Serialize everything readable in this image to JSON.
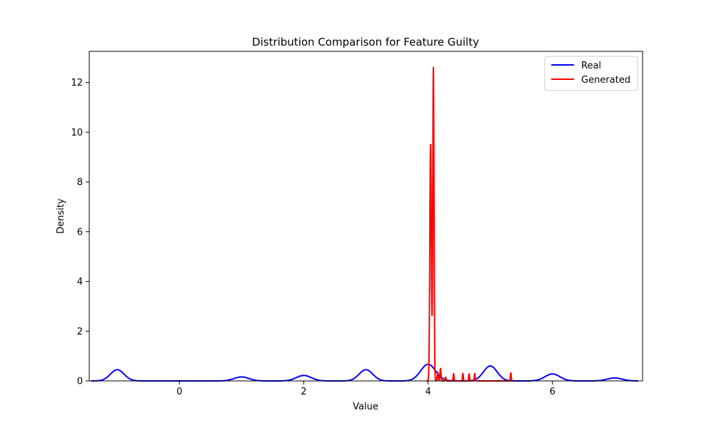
{
  "chart_data": {
    "type": "line",
    "title": "Distribution Comparison for Feature Guilty",
    "xlabel": "Value",
    "ylabel": "Density",
    "xlim": [
      -1.45,
      7.45
    ],
    "ylim": [
      0,
      13.25
    ],
    "xticks": [
      0,
      2,
      4,
      6
    ],
    "yticks": [
      0,
      2,
      4,
      6,
      8,
      10,
      12
    ],
    "grid": false,
    "legend": "top-right",
    "series": [
      {
        "name": "Real",
        "color": "#0000ff",
        "components": [
          {
            "center": -1.0,
            "height": 0.45,
            "width": 0.11
          },
          {
            "center": 1.0,
            "height": 0.16,
            "width": 0.12
          },
          {
            "center": 2.0,
            "height": 0.22,
            "width": 0.12
          },
          {
            "center": 3.0,
            "height": 0.45,
            "width": 0.11
          },
          {
            "center": 4.0,
            "height": 0.67,
            "width": 0.12
          },
          {
            "center": 5.0,
            "height": 0.6,
            "width": 0.11
          },
          {
            "center": 6.0,
            "height": 0.28,
            "width": 0.12
          },
          {
            "center": 7.0,
            "height": 0.12,
            "width": 0.12
          }
        ],
        "x_range": [
          -1.42,
          7.38
        ]
      },
      {
        "name": "Generated",
        "color": "#ff0000",
        "components": [
          {
            "center": 4.04,
            "height": 9.5,
            "width": 0.012
          },
          {
            "center": 4.085,
            "height": 12.6,
            "width": 0.01
          },
          {
            "center": 4.155,
            "height": 0.35,
            "width": 0.008
          },
          {
            "center": 4.2,
            "height": 0.5,
            "width": 0.008
          },
          {
            "center": 4.28,
            "height": 0.15,
            "width": 0.008
          },
          {
            "center": 4.41,
            "height": 0.3,
            "width": 0.007
          },
          {
            "center": 4.56,
            "height": 0.3,
            "width": 0.007
          },
          {
            "center": 4.66,
            "height": 0.28,
            "width": 0.007
          },
          {
            "center": 4.75,
            "height": 0.3,
            "width": 0.007
          },
          {
            "center": 5.33,
            "height": 0.32,
            "width": 0.007
          }
        ],
        "x_range": [
          3.97,
          5.36
        ]
      }
    ]
  }
}
